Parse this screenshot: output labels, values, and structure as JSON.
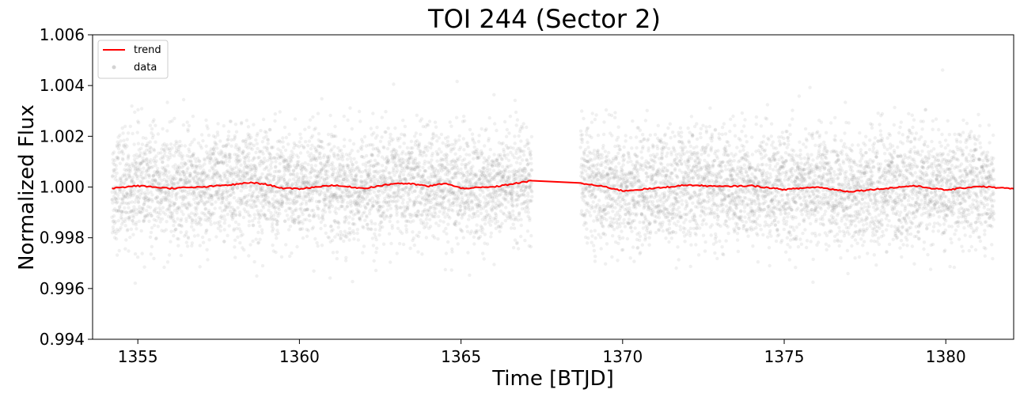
{
  "chart_data": {
    "type": "scatter",
    "title": "TOI 244 (Sector 2)",
    "xlabel": "Time [BTJD]",
    "ylabel": "Normalized Flux",
    "xlim": [
      1353.6,
      1382.1
    ],
    "ylim": [
      0.994,
      1.006
    ],
    "xticks": [
      1355,
      1360,
      1365,
      1370,
      1375,
      1380
    ],
    "yticks": [
      0.994,
      0.996,
      0.998,
      1.0,
      1.002,
      1.004,
      1.006
    ],
    "xtick_labels": [
      "1355",
      "1360",
      "1365",
      "1370",
      "1375",
      "1380"
    ],
    "ytick_labels": [
      "0.994",
      "0.996",
      "0.998",
      "1.000",
      "1.002",
      "1.004",
      "1.006"
    ],
    "grid": false,
    "legend": {
      "position": "top-left",
      "entries": [
        {
          "label": "trend",
          "kind": "line",
          "color": "#ff0000"
        },
        {
          "label": "data",
          "kind": "marker",
          "color": "#808080"
        }
      ]
    },
    "series": [
      {
        "name": "data",
        "kind": "scatter",
        "color": "#808080",
        "description_of_coverage": "",
        "segments": [
          {
            "x_start": 1354.2,
            "x_end": 1367.2
          },
          {
            "x_start": 1368.7,
            "x_end": 1381.5
          }
        ],
        "center": 1.0,
        "scatter_sigma": 0.0011
      },
      {
        "name": "trend",
        "kind": "line",
        "color": "#ff0000",
        "x": [
          1354.2,
          1355.0,
          1356.0,
          1357.0,
          1358.0,
          1358.5,
          1359.0,
          1359.5,
          1360.0,
          1361.0,
          1362.0,
          1363.0,
          1363.5,
          1364.0,
          1364.5,
          1365.0,
          1366.0,
          1367.2,
          1368.7,
          1369.5,
          1370.0,
          1371.0,
          1372.0,
          1373.0,
          1374.0,
          1375.0,
          1376.0,
          1377.0,
          1378.0,
          1379.0,
          1380.0,
          1381.0,
          1382.1
        ],
        "y": [
          0.99995,
          1.00005,
          0.99995,
          1.0,
          1.0001,
          1.00018,
          1.0001,
          0.99995,
          0.99993,
          1.00007,
          0.99995,
          1.00015,
          1.00012,
          1.00003,
          1.00015,
          0.99995,
          1.0,
          1.00025,
          1.00015,
          1.0,
          0.99985,
          0.99995,
          1.00008,
          1.00002,
          1.00005,
          0.9999,
          1.0,
          0.99982,
          0.99993,
          1.00005,
          0.99988,
          1.00003,
          0.99993
        ]
      }
    ]
  }
}
